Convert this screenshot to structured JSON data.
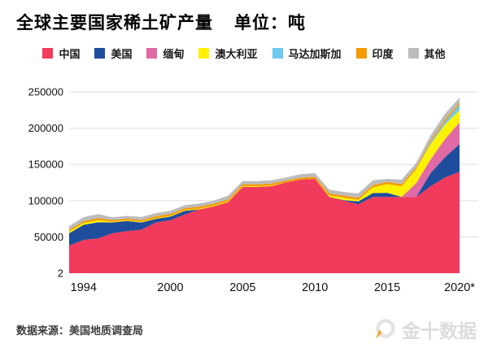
{
  "header": {
    "title": "全球主要国家稀土矿产量",
    "unit_label": "单位：吨"
  },
  "source": {
    "label": "数据来源：美国地质调查局"
  },
  "watermark": {
    "brand": "金十数据"
  },
  "colors": {
    "background": "#ffffff",
    "grid": "#e3e3e3",
    "axis_text": "#111111",
    "title_text": "#000000",
    "source_text": "#3d3d3d",
    "watermark_text": "#dcdcdc",
    "watermark_needle": "#f5a93c"
  },
  "chart_data": {
    "type": "area",
    "stacked": true,
    "title": "全球主要国家稀土矿产量",
    "unit": "吨",
    "xlabel": "",
    "ylabel": "",
    "grid": "horizontal",
    "legend_position": "top",
    "ylim": [
      0,
      265000
    ],
    "x": [
      1993,
      1994,
      1995,
      1996,
      1997,
      1998,
      1999,
      2000,
      2001,
      2002,
      2003,
      2004,
      2005,
      2006,
      2007,
      2008,
      2009,
      2010,
      2011,
      2012,
      2013,
      2014,
      2015,
      2016,
      2017,
      2018,
      2019,
      2020
    ],
    "x_tick_labels": [
      {
        "year": 1994,
        "label": "1994"
      },
      {
        "year": 2000,
        "label": "2000"
      },
      {
        "year": 2005,
        "label": "2005"
      },
      {
        "year": 2010,
        "label": "2010"
      },
      {
        "year": 2015,
        "label": "2015"
      },
      {
        "year": 2020,
        "label": "2020*"
      }
    ],
    "y_ticks": [
      {
        "value": 250000,
        "label": "250000"
      },
      {
        "value": 200000,
        "label": "200000"
      },
      {
        "value": 150000,
        "label": "150000"
      },
      {
        "value": 100000,
        "label": "100000"
      },
      {
        "value": 50000,
        "label": "50000"
      },
      {
        "value": 2,
        "label": "2"
      }
    ],
    "series": [
      {
        "key": "china",
        "name": "中国",
        "color": "#f23a5c",
        "values": [
          38000,
          46000,
          48000,
          55000,
          58000,
          60000,
          70000,
          73000,
          81000,
          88000,
          92000,
          98000,
          119000,
          119000,
          120000,
          125000,
          129000,
          130000,
          105000,
          100000,
          95000,
          105000,
          105000,
          105000,
          105000,
          120000,
          132000,
          140000
        ]
      },
      {
        "key": "usa",
        "name": "美国",
        "color": "#1e4d9e",
        "values": [
          17000,
          20700,
          22200,
          15000,
          14000,
          10000,
          5000,
          5000,
          5000,
          0,
          0,
          0,
          0,
          0,
          0,
          0,
          0,
          0,
          0,
          800,
          4000,
          5400,
          5900,
          0,
          0,
          18000,
          28000,
          38000
        ]
      },
      {
        "key": "myanmar",
        "name": "缅甸",
        "color": "#e169a6",
        "values": [
          0,
          0,
          0,
          0,
          0,
          0,
          0,
          0,
          0,
          0,
          0,
          0,
          0,
          0,
          0,
          0,
          0,
          0,
          0,
          0,
          0,
          0,
          0,
          0,
          19000,
          19000,
          25000,
          30000
        ]
      },
      {
        "key": "australia",
        "name": "澳大利亚",
        "color": "#fff200",
        "values": [
          2400,
          2700,
          3000,
          1000,
          1000,
          1000,
          1000,
          1000,
          1000,
          1000,
          1000,
          1000,
          1000,
          1000,
          1000,
          0,
          0,
          0,
          2200,
          3200,
          2000,
          8000,
          12000,
          15000,
          19000,
          21000,
          20000,
          17000
        ]
      },
      {
        "key": "madagascar",
        "name": "马达加斯加",
        "color": "#6ec8f2",
        "values": [
          0,
          0,
          0,
          0,
          0,
          0,
          0,
          0,
          0,
          0,
          0,
          0,
          0,
          0,
          0,
          0,
          0,
          0,
          0,
          0,
          0,
          0,
          0,
          0,
          0,
          2000,
          4000,
          8000
        ]
      },
      {
        "key": "india",
        "name": "印度",
        "color": "#f59a00",
        "values": [
          2500,
          2500,
          2700,
          2200,
          2200,
          2200,
          2700,
          2700,
          2700,
          2700,
          2700,
          2700,
          2700,
          2700,
          2700,
          2700,
          2700,
          2800,
          2800,
          2900,
          2900,
          2900,
          2900,
          2900,
          2900,
          2900,
          3000,
          3000
        ]
      },
      {
        "key": "others",
        "name": "其他",
        "color": "#bcbcbc",
        "values": [
          5000,
          5500,
          5600,
          3800,
          3800,
          4300,
          4300,
          4300,
          4300,
          4300,
          4300,
          5300,
          4300,
          4300,
          4300,
          4300,
          4800,
          5200,
          5000,
          5100,
          6100,
          6700,
          4200,
          6100,
          6100,
          7100,
          8000,
          6000
        ]
      }
    ]
  }
}
